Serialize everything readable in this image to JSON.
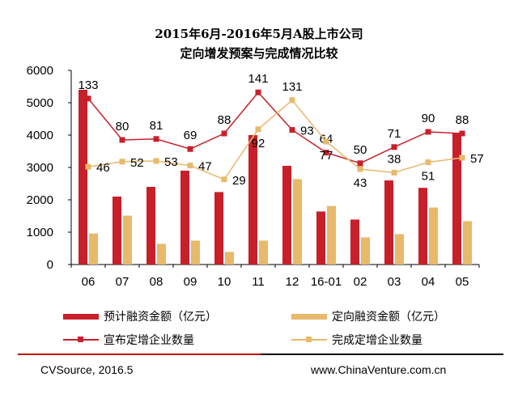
{
  "chart_data": {
    "type": "bar",
    "title_lines": [
      "2015年6月-2016年5月A股上市公司",
      "定向增发预案与完成情况比较"
    ],
    "categories": [
      "06",
      "07",
      "08",
      "09",
      "10",
      "11",
      "12",
      "16-01",
      "02",
      "03",
      "04",
      "05"
    ],
    "ylim": [
      0,
      6000
    ],
    "yticks": [
      0,
      1000,
      2000,
      3000,
      4000,
      5000,
      6000
    ],
    "series": [
      {
        "name": "预计融资金额（亿元）",
        "kind": "bar",
        "color": "#c8202a",
        "values": [
          5400,
          2100,
          2400,
          2900,
          2240,
          4000,
          3050,
          1640,
          1390,
          2600,
          2370,
          4050
        ]
      },
      {
        "name": "定向融资金额（亿元）",
        "kind": "bar",
        "color": "#e8b96b",
        "values": [
          960,
          1510,
          640,
          740,
          390,
          740,
          2640,
          1810,
          840,
          940,
          1760,
          1340
        ]
      },
      {
        "name": "宣布定增企业数量",
        "kind": "line",
        "color": "#c8202a",
        "values": [
          133,
          80,
          81,
          69,
          88,
          141,
          93,
          64,
          50,
          71,
          90,
          88
        ],
        "plot_y": [
          5130,
          3850,
          3880,
          3570,
          4050,
          5320,
          4160,
          3460,
          3130,
          3630,
          4100,
          4050
        ]
      },
      {
        "name": "完成定增企业数量",
        "kind": "line",
        "color": "#e8b96b",
        "values": [
          46,
          52,
          53,
          47,
          29,
          92,
          131,
          77,
          43,
          38,
          51,
          57
        ],
        "plot_y": [
          3020,
          3180,
          3200,
          3060,
          2630,
          4180,
          5080,
          3800,
          2950,
          2840,
          3160,
          3300
        ]
      }
    ],
    "label_positions": {
      "s2": [
        "above",
        "above",
        "above",
        "above",
        "above",
        "above",
        "right",
        "above",
        "above",
        "above",
        "above",
        "above"
      ],
      "s3": [
        "right",
        "right",
        "right",
        "right",
        "right",
        "below",
        "above",
        "below",
        "below",
        "above",
        "below",
        "right"
      ]
    },
    "grid": false,
    "legend": "bottom"
  },
  "legend": {
    "items": [
      {
        "label": "预计融资金额（亿元）",
        "color": "#c8202a",
        "type": "bar"
      },
      {
        "label": "定向融资金额（亿元）",
        "color": "#e8b96b",
        "type": "bar"
      },
      {
        "label": "宣布定增企业数量",
        "color": "#c8202a",
        "type": "line"
      },
      {
        "label": "完成定增企业数量",
        "color": "#e8b96b",
        "type": "line"
      }
    ]
  },
  "footer": {
    "source": "CVSource, 2016.5",
    "site": "www.ChinaVenture.com.cn"
  }
}
